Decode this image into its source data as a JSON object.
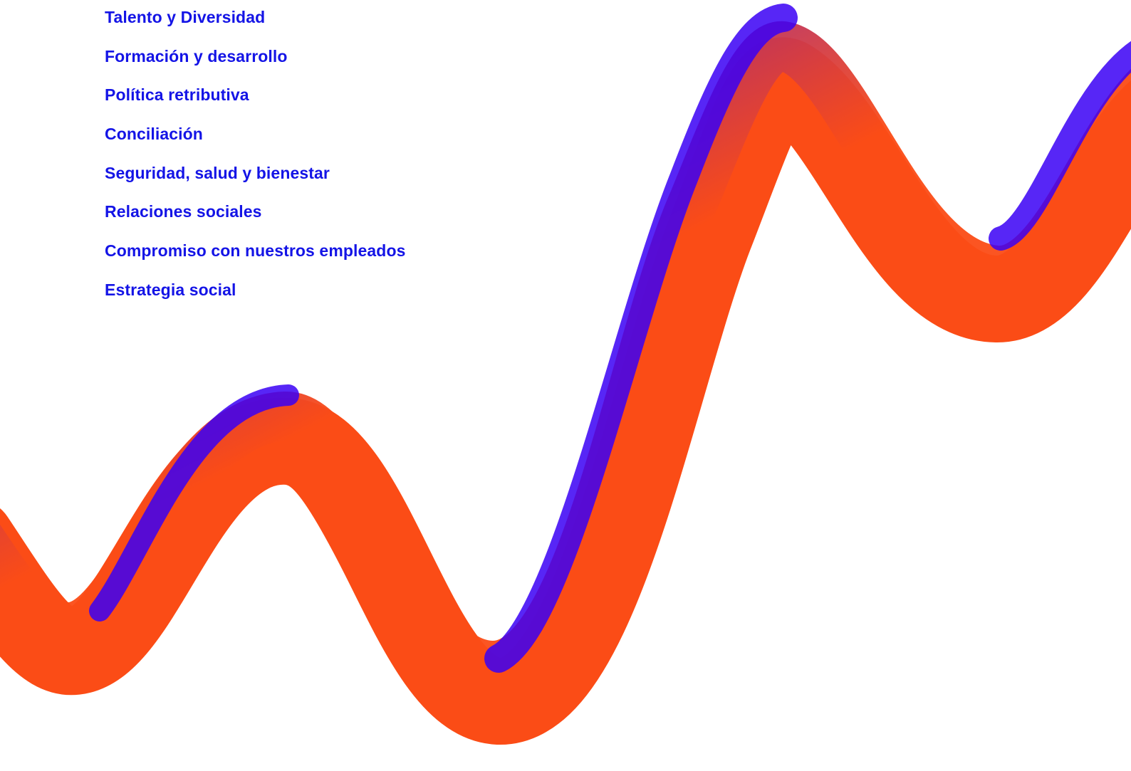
{
  "menu": {
    "items": [
      {
        "label": "Talento y Diversidad",
        "id": "talento-diversidad"
      },
      {
        "label": "Formación y desarrollo",
        "id": "formacion-desarrollo"
      },
      {
        "label": "Política retributiva",
        "id": "politica-retributiva"
      },
      {
        "label": "Conciliación",
        "id": "conciliacion"
      },
      {
        "label": "Seguridad, salud y bienestar",
        "id": "seguridad-salud-bienestar"
      },
      {
        "label": "Relaciones sociales",
        "id": "relaciones-sociales"
      },
      {
        "label": "Compromiso con nuestros empleados",
        "id": "compromiso-empleados"
      },
      {
        "label": "Estrategia social",
        "id": "estrategia-social"
      }
    ]
  },
  "colors": {
    "link": "#1414e6",
    "ribbon_blue": "#3a00f5",
    "ribbon_orange": "#fb4c16",
    "background": "#ffffff"
  }
}
